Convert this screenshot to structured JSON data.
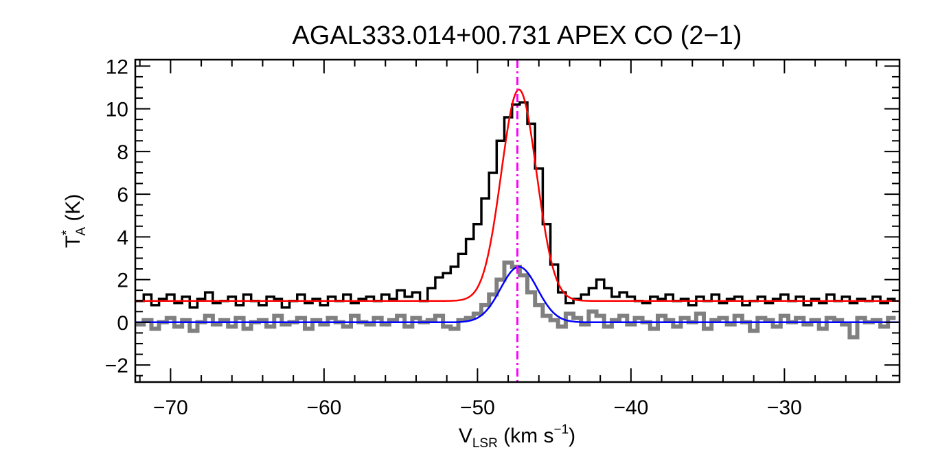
{
  "chart_data": {
    "type": "line",
    "title": "AGAL333.014+00.731   APEX CO (2−1)",
    "xlabel": {
      "main": "V",
      "sub": "LSR",
      "suffix": " (km s",
      "sup": "−1",
      "close": ")"
    },
    "ylabel": {
      "main": "T",
      "sup": "*",
      "sub": "A",
      "suffix": " (K)"
    },
    "xlim": [
      -72.3,
      -22.5
    ],
    "ylim": [
      -2.8,
      12.3
    ],
    "xticks": [
      -70,
      -60,
      -50,
      -40,
      -30
    ],
    "xtick_labels": [
      "−70",
      "−60",
      "−50",
      "−40",
      "−30"
    ],
    "yticks": [
      -2,
      0,
      2,
      4,
      6,
      8,
      10,
      12
    ],
    "ytick_labels": [
      "−2",
      "0",
      "2",
      "4",
      "6",
      "8",
      "10",
      "12"
    ],
    "x_minor_step": 2,
    "y_minor_step": 0.5,
    "grid": false,
    "vline": {
      "x": -47.4,
      "color": "#ff00ff",
      "style": "dash-dot"
    },
    "series": [
      {
        "kind": "step",
        "color": "#000000",
        "width": 3.5,
        "x": [
          -72.0,
          -71.5,
          -71.0,
          -70.5,
          -70.0,
          -69.5,
          -69.0,
          -68.5,
          -68.0,
          -67.5,
          -67.0,
          -66.5,
          -66.0,
          -65.5,
          -65.0,
          -64.5,
          -64.0,
          -63.5,
          -63.0,
          -62.5,
          -62.0,
          -61.5,
          -61.0,
          -60.5,
          -60.0,
          -59.5,
          -59.0,
          -58.5,
          -58.0,
          -57.5,
          -57.0,
          -56.5,
          -56.0,
          -55.5,
          -55.0,
          -54.5,
          -54.0,
          -53.5,
          -53.0,
          -52.5,
          -52.0,
          -51.5,
          -51.0,
          -50.5,
          -50.0,
          -49.5,
          -49.0,
          -48.5,
          -48.0,
          -47.5,
          -47.0,
          -46.5,
          -46.0,
          -45.5,
          -45.0,
          -44.5,
          -44.0,
          -43.5,
          -43.0,
          -42.5,
          -42.0,
          -41.5,
          -41.0,
          -40.5,
          -40.0,
          -39.5,
          -39.0,
          -38.5,
          -38.0,
          -37.5,
          -37.0,
          -36.5,
          -36.0,
          -35.5,
          -35.0,
          -34.5,
          -34.0,
          -33.5,
          -33.0,
          -32.5,
          -32.0,
          -31.5,
          -31.0,
          -30.5,
          -30.0,
          -29.5,
          -29.0,
          -28.5,
          -28.0,
          -27.5,
          -27.0,
          -26.5,
          -26.0,
          -25.5,
          -25.0,
          -24.5,
          -24.0,
          -23.5,
          -23.0
        ],
        "values": [
          1.0,
          1.3,
          0.8,
          1.1,
          1.3,
          0.9,
          1.2,
          0.7,
          1.1,
          1.4,
          0.9,
          1.0,
          1.2,
          0.8,
          1.3,
          1.0,
          0.8,
          1.2,
          1.1,
          0.7,
          1.0,
          1.3,
          0.9,
          1.1,
          0.8,
          1.2,
          1.0,
          1.3,
          0.9,
          1.1,
          1.2,
          1.0,
          1.3,
          1.1,
          1.5,
          1.2,
          1.4,
          1.0,
          1.6,
          2.1,
          2.3,
          2.6,
          3.2,
          3.9,
          4.6,
          5.8,
          7.0,
          8.5,
          9.6,
          10.2,
          10.3,
          9.3,
          7.2,
          4.6,
          2.7,
          1.4,
          0.9,
          1.1,
          1.3,
          1.6,
          2.0,
          1.6,
          1.2,
          1.4,
          1.2,
          1.0,
          0.9,
          1.2,
          1.1,
          1.3,
          1.0,
          1.1,
          0.8,
          1.2,
          1.0,
          1.3,
          0.9,
          1.1,
          1.2,
          0.8,
          1.0,
          1.2,
          0.9,
          1.1,
          1.3,
          1.0,
          1.2,
          0.8,
          1.1,
          0.9,
          1.3,
          1.0,
          1.2,
          0.9,
          1.1,
          1.0,
          1.2,
          0.9,
          1.1
        ]
      },
      {
        "kind": "step",
        "color": "#808080",
        "width": 6,
        "x": [
          -72.0,
          -71.5,
          -71.0,
          -70.5,
          -70.0,
          -69.5,
          -69.0,
          -68.5,
          -68.0,
          -67.5,
          -67.0,
          -66.5,
          -66.0,
          -65.5,
          -65.0,
          -64.5,
          -64.0,
          -63.5,
          -63.0,
          -62.5,
          -62.0,
          -61.5,
          -61.0,
          -60.5,
          -60.0,
          -59.5,
          -59.0,
          -58.5,
          -58.0,
          -57.5,
          -57.0,
          -56.5,
          -56.0,
          -55.5,
          -55.0,
          -54.5,
          -54.0,
          -53.5,
          -53.0,
          -52.5,
          -52.0,
          -51.5,
          -51.0,
          -50.5,
          -50.0,
          -49.5,
          -49.0,
          -48.5,
          -48.0,
          -47.5,
          -47.0,
          -46.5,
          -46.0,
          -45.5,
          -45.0,
          -44.5,
          -44.0,
          -43.5,
          -43.0,
          -42.5,
          -42.0,
          -41.5,
          -41.0,
          -40.5,
          -40.0,
          -39.5,
          -39.0,
          -38.5,
          -38.0,
          -37.5,
          -37.0,
          -36.5,
          -36.0,
          -35.5,
          -35.0,
          -34.5,
          -34.0,
          -33.5,
          -33.0,
          -32.5,
          -32.0,
          -31.5,
          -31.0,
          -30.5,
          -30.0,
          -29.5,
          -29.0,
          -28.5,
          -28.0,
          -27.5,
          -27.0,
          -26.5,
          -26.0,
          -25.5,
          -25.0,
          -24.5,
          -24.0,
          -23.5,
          -23.0
        ],
        "values": [
          -0.1,
          0.1,
          -0.3,
          0.0,
          0.2,
          -0.2,
          0.1,
          -0.4,
          0.0,
          0.3,
          -0.1,
          0.1,
          -0.2,
          0.2,
          -0.3,
          0.0,
          0.1,
          -0.2,
          0.3,
          -0.1,
          0.0,
          0.2,
          -0.3,
          0.1,
          -0.1,
          0.2,
          0.0,
          -0.2,
          0.3,
          0.0,
          -0.1,
          0.2,
          -0.1,
          0.1,
          0.3,
          -0.2,
          0.2,
          0.0,
          0.1,
          0.3,
          -0.2,
          -0.3,
          0.1,
          0.2,
          0.4,
          0.8,
          1.3,
          2.0,
          2.8,
          2.6,
          2.2,
          1.4,
          0.8,
          0.3,
          0.1,
          -0.2,
          0.4,
          0.2,
          -0.1,
          0.5,
          0.3,
          -0.2,
          0.1,
          0.3,
          -0.1,
          0.2,
          0.0,
          -0.3,
          0.3,
          0.1,
          -0.2,
          0.2,
          0.0,
          0.4,
          -0.3,
          0.1,
          0.2,
          -0.1,
          0.3,
          0.0,
          -0.4,
          0.2,
          0.1,
          -0.2,
          0.3,
          0.0,
          0.2,
          -0.1,
          0.1,
          -0.3,
          0.2,
          0.1,
          -0.1,
          -0.7,
          0.2,
          0.0,
          0.1,
          -0.2,
          0.2
        ]
      },
      {
        "kind": "gaussian",
        "color": "#ff0000",
        "width": 2.5,
        "baseline": 1.0,
        "amplitude": 9.9,
        "center": -47.3,
        "sigma": 1.15
      },
      {
        "kind": "gaussian",
        "color": "#0000ff",
        "width": 2.5,
        "baseline": 0.0,
        "amplitude": 2.6,
        "center": -47.3,
        "sigma": 1.2
      }
    ]
  }
}
